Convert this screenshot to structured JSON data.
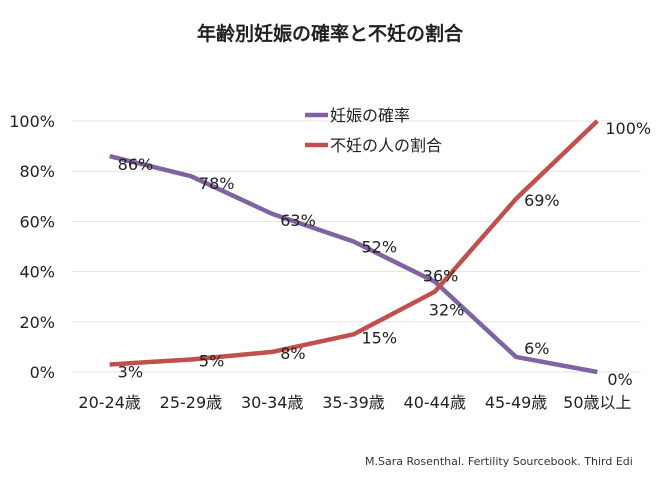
{
  "chart_data": {
    "type": "line",
    "title": "年齢別妊娠の確率と不妊の割合",
    "categories": [
      "20-24歳",
      "25-29歳",
      "30-34歳",
      "35-39歳",
      "40-44歳",
      "45-49歳",
      "50歳以上"
    ],
    "series": [
      {
        "name": "妊娠の確率",
        "color": "#7f63a2",
        "values": [
          86,
          78,
          63,
          52,
          36,
          6,
          0
        ],
        "labels": [
          "86%",
          "78%",
          "63%",
          "52%",
          "36%",
          "6%",
          "0%"
        ]
      },
      {
        "name": "不妊の人の割合",
        "color": "#c0504d",
        "values": [
          3,
          5,
          8,
          15,
          32,
          69,
          100
        ],
        "labels": [
          "3%",
          "5%",
          "8%",
          "15%",
          "32%",
          "69%",
          "100%"
        ]
      }
    ],
    "yticks": [
      "0%",
      "20%",
      "40%",
      "60%",
      "80%",
      "100%"
    ],
    "ylim": [
      0,
      100
    ],
    "grid": true,
    "legend": "top-center",
    "xlabel": "",
    "ylabel": ""
  },
  "source": "M.Sara Rosenthal. Fertility Sourcebook. Third Edi"
}
